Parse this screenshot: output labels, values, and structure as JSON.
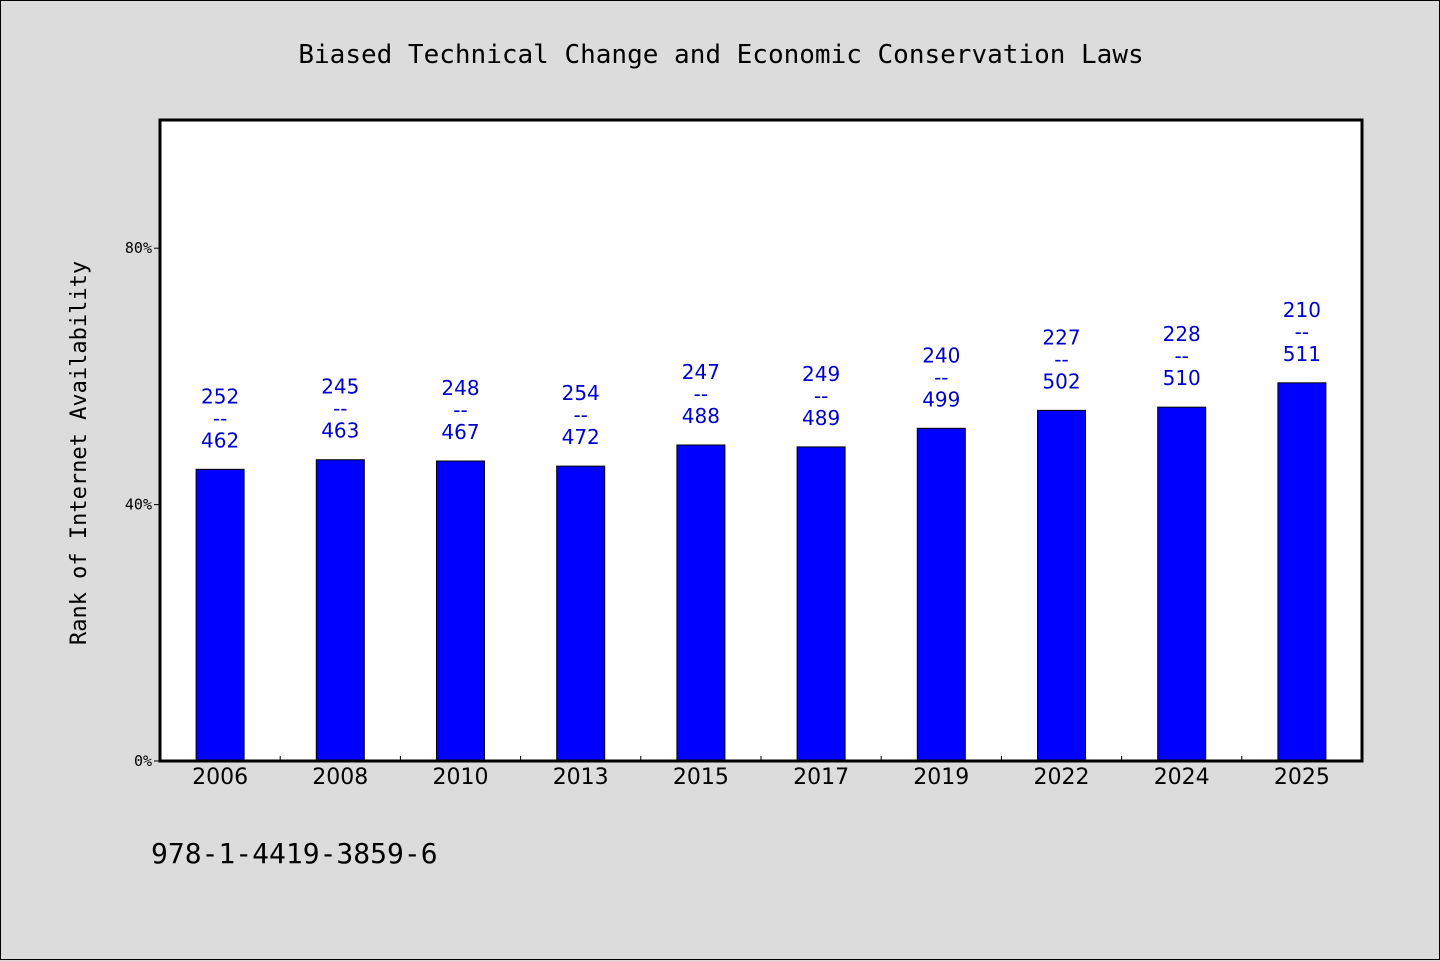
{
  "chart_data": {
    "type": "bar",
    "title": "Biased Technical Change and Economic Conservation Laws",
    "xlabel": "",
    "ylabel": "Rank of Internet Availability",
    "categories": [
      "2006",
      "2008",
      "2010",
      "2013",
      "2015",
      "2017",
      "2019",
      "2022",
      "2024",
      "2025"
    ],
    "series": [
      {
        "values": [
          45.5,
          47.0,
          46.8,
          46.0,
          49.3,
          49.0,
          51.9,
          54.7,
          55.2,
          59.0
        ],
        "data_labels": [
          [
            "252",
            "--",
            "462"
          ],
          [
            "245",
            "--",
            "463"
          ],
          [
            "248",
            "--",
            "467"
          ],
          [
            "254",
            "--",
            "472"
          ],
          [
            "247",
            "--",
            "488"
          ],
          [
            "249",
            "--",
            "489"
          ],
          [
            "240",
            "--",
            "499"
          ],
          [
            "227",
            "--",
            "502"
          ],
          [
            "228",
            "--",
            "510"
          ],
          [
            "210",
            "--",
            "511"
          ]
        ]
      }
    ],
    "ylim": [
      0,
      100
    ],
    "yticks": [
      0,
      40,
      80
    ],
    "ytick_labels": [
      "0%",
      "40%",
      "80%"
    ],
    "grid": false,
    "legend": "none",
    "colors": {
      "bar": "#0000ff",
      "data_label": "#0000cc",
      "background": "#dcdcdc",
      "plot_background": "#ffffff"
    }
  },
  "footer": {
    "text": "978-1-4419-3859-6"
  }
}
